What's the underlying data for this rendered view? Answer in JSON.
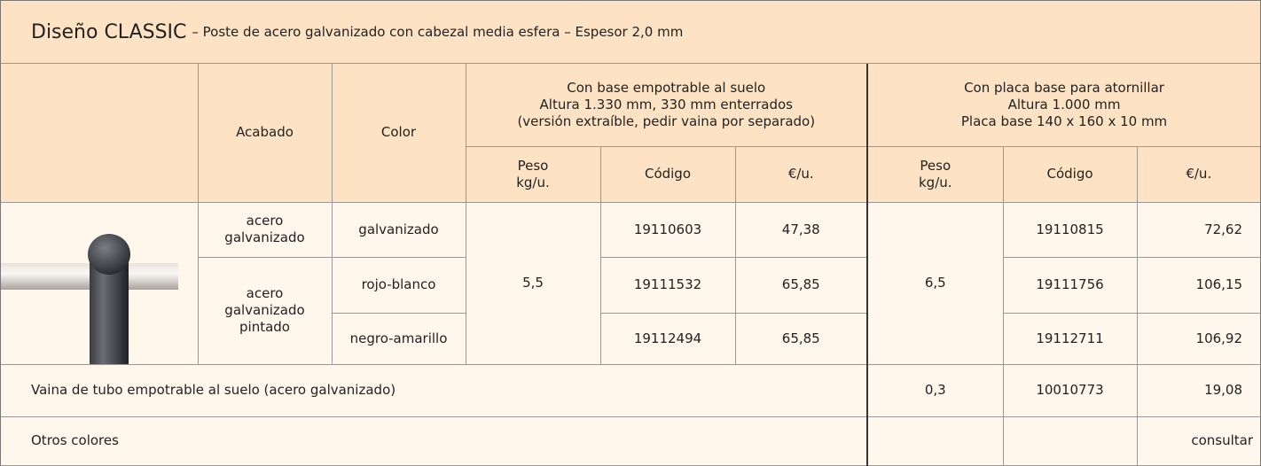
{
  "title": {
    "main": "Diseño CLASSIC",
    "sub": "– Poste de acero galvanizado con cabezal media esfera – Espesor 2,0 mm"
  },
  "table": {
    "headers": {
      "acabado": "Acabado",
      "color": "Color",
      "group1": [
        "Con base empotrable al suelo",
        "Altura 1.330 mm, 330 mm enterrados",
        "(versión extraíble, pedir vaina por separado)"
      ],
      "group2": [
        "Con placa base para atornillar",
        "Altura 1.000 mm",
        "Placa base 140 x 160 x 10 mm"
      ],
      "peso": [
        "Peso",
        "kg/u."
      ],
      "codigo": "Código",
      "precio": "€/u."
    },
    "rows": [
      {
        "acabado": "acero galvanizado",
        "color": "galvanizado",
        "peso1": "5,5",
        "codigo1": "19110603",
        "precio1": "47,38",
        "peso2": "6,5",
        "codigo2": "19110815",
        "precio2": "72,62"
      },
      {
        "acabado": "acero galvanizado pintado",
        "color": "rojo-blanco",
        "codigo1": "19111532",
        "precio1": "65,85",
        "codigo2": "19111756",
        "precio2": "106,15"
      },
      {
        "color": "negro-amarillo",
        "codigo1": "19112494",
        "precio1": "65,85",
        "codigo2": "19112711",
        "precio2": "106,92"
      }
    ],
    "vaina": {
      "label": "Vaina de tubo empotrable al suelo (acero galvanizado)",
      "peso": "0,3",
      "codigo": "10010773",
      "precio": "19,08"
    },
    "otros": {
      "label": "Otros colores",
      "precio": "consultar"
    }
  }
}
